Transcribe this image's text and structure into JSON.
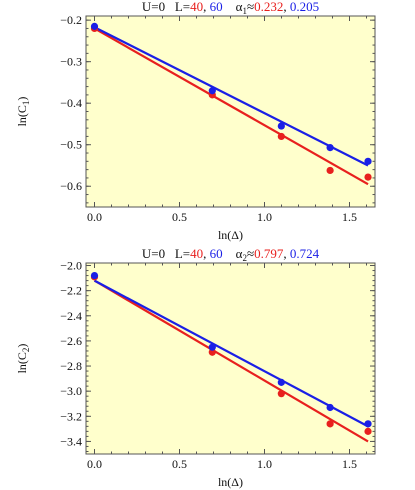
{
  "colors": {
    "background": "#ffffcc",
    "red": "#e8201e",
    "blue": "#1a1fe6",
    "axis": "#555555",
    "text": "#111111"
  },
  "chart_data": [
    {
      "type": "scatter",
      "title_parts": [
        {
          "text": "U=0   L=",
          "color": "#111111"
        },
        {
          "text": "40",
          "color": "#e8201e"
        },
        {
          "text": ", ",
          "color": "#111111"
        },
        {
          "text": "60",
          "color": "#1a1fe6"
        },
        {
          "text": "    α",
          "color": "#111111"
        },
        {
          "text": "1",
          "color": "#111111",
          "sub": true
        },
        {
          "text": "≈",
          "color": "#111111"
        },
        {
          "text": "0.232",
          "color": "#e8201e"
        },
        {
          "text": ", ",
          "color": "#111111"
        },
        {
          "text": "0.205",
          "color": "#1a1fe6"
        }
      ],
      "xlabel": "ln(Δ)",
      "ylabel_main": "ln(C",
      "ylabel_sub": "1",
      "ylabel_close": ")",
      "xlim": [
        -0.05,
        1.65
      ],
      "ylim": [
        -0.65,
        -0.19
      ],
      "xticks": [
        0.0,
        0.5,
        1.0,
        1.5
      ],
      "xtick_labels": [
        "0.0",
        "0.5",
        "1.0",
        "1.5"
      ],
      "yticks": [
        -0.2,
        -0.3,
        -0.4,
        -0.5,
        -0.6
      ],
      "ytick_labels": [
        "−0.2",
        "−0.3",
        "−0.4",
        "−0.5",
        "−0.6"
      ],
      "series": [
        {
          "color": "#e8201e",
          "x": [
            0.0,
            0.693,
            1.099,
            1.386,
            1.609
          ],
          "y": [
            -0.22,
            -0.38,
            -0.48,
            -0.562,
            -0.578
          ],
          "fit": {
            "x": [
              0.0,
              1.609
            ],
            "y": [
              -0.22,
              -0.595
            ]
          }
        },
        {
          "color": "#1a1fe6",
          "x": [
            0.0,
            0.693,
            1.099,
            1.386,
            1.609
          ],
          "y": [
            -0.215,
            -0.37,
            -0.455,
            -0.507,
            -0.54
          ],
          "fit": {
            "x": [
              0.0,
              1.609
            ],
            "y": [
              -0.217,
              -0.55
            ]
          }
        }
      ]
    },
    {
      "type": "scatter",
      "title_parts": [
        {
          "text": "U=0   L=",
          "color": "#111111"
        },
        {
          "text": "40",
          "color": "#e8201e"
        },
        {
          "text": ", ",
          "color": "#111111"
        },
        {
          "text": "60",
          "color": "#1a1fe6"
        },
        {
          "text": "    α",
          "color": "#111111"
        },
        {
          "text": "2",
          "color": "#111111",
          "sub": true
        },
        {
          "text": "≈",
          "color": "#111111"
        },
        {
          "text": "0.797",
          "color": "#e8201e"
        },
        {
          "text": ", ",
          "color": "#111111"
        },
        {
          "text": "0.724",
          "color": "#1a1fe6"
        }
      ],
      "xlabel": "ln(Δ)",
      "ylabel_main": "ln(C",
      "ylabel_sub": "2",
      "ylabel_close": ")",
      "xlim": [
        -0.05,
        1.65
      ],
      "ylim": [
        -3.5,
        -1.98
      ],
      "xticks": [
        0.0,
        0.5,
        1.0,
        1.5
      ],
      "xtick_labels": [
        "0.0",
        "0.5",
        "1.0",
        "1.5"
      ],
      "yticks": [
        -2.0,
        -2.2,
        -2.4,
        -2.6,
        -2.8,
        -3.0,
        -3.2,
        -3.4
      ],
      "ytick_labels": [
        "−2.0",
        "−2.2",
        "−2.4",
        "−2.6",
        "−2.8",
        "−3.0",
        "−3.2",
        "−3.4"
      ],
      "series": [
        {
          "color": "#e8201e",
          "x": [
            0.0,
            0.693,
            1.099,
            1.386,
            1.609
          ],
          "y": [
            -2.09,
            -2.69,
            -3.02,
            -3.26,
            -3.32
          ],
          "fit": {
            "x": [
              0.0,
              1.609
            ],
            "y": [
              -2.12,
              -3.4
            ]
          }
        },
        {
          "color": "#1a1fe6",
          "x": [
            0.0,
            0.693,
            1.099,
            1.386,
            1.609
          ],
          "y": [
            -2.08,
            -2.65,
            -2.93,
            -3.13,
            -3.26
          ],
          "fit": {
            "x": [
              0.0,
              1.609
            ],
            "y": [
              -2.12,
              -3.28
            ]
          }
        }
      ]
    }
  ]
}
